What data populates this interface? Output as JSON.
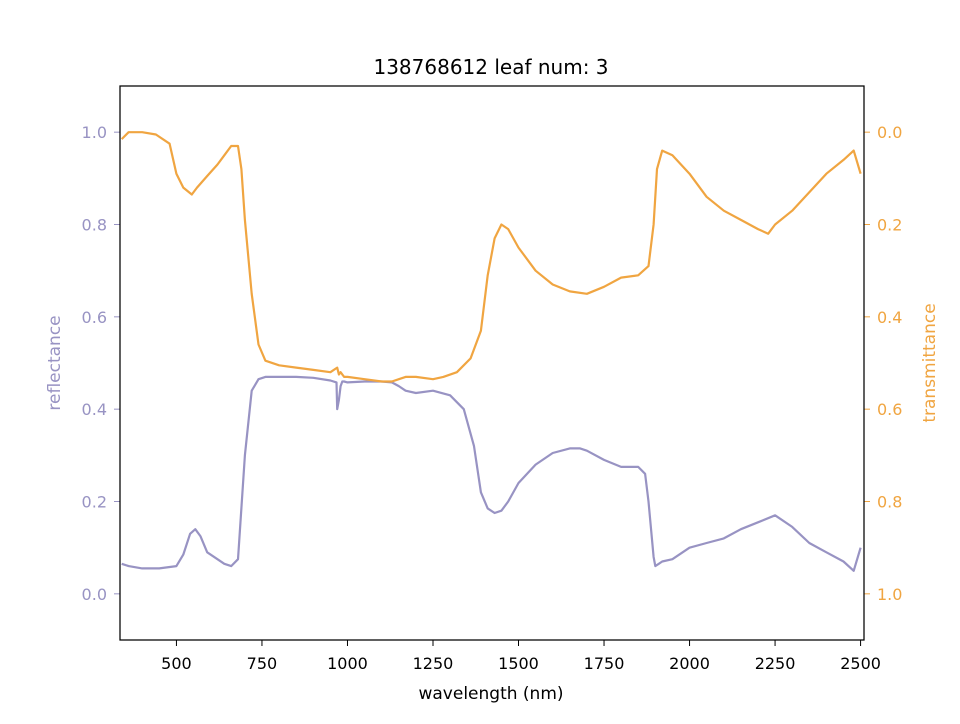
{
  "chart_data": {
    "type": "line",
    "title": "138768612 leaf num: 3",
    "xlabel": "wavelength (nm)",
    "xlim": [
      335,
      2510
    ],
    "xticks": [
      500,
      750,
      1000,
      1250,
      1500,
      1750,
      2000,
      2250,
      2500
    ],
    "y_left": {
      "label": "reflectance",
      "lim": [
        -0.1,
        1.1
      ],
      "ticks": [
        "0.0",
        "0.2",
        "0.4",
        "0.6",
        "0.8",
        "1.0"
      ],
      "color": "#9893c3"
    },
    "y_right": {
      "label": "transmittance",
      "lim": [
        1.1,
        -0.1
      ],
      "inverted": true,
      "ticks": [
        "0.0",
        "0.2",
        "0.4",
        "0.6",
        "0.8",
        "1.0"
      ],
      "color": "#f0a541"
    },
    "series": [
      {
        "axis": "left",
        "color": "#9893c3",
        "x": [
          340,
          360,
          400,
          450,
          500,
          520,
          540,
          555,
          570,
          590,
          610,
          640,
          660,
          680,
          700,
          720,
          740,
          760,
          800,
          850,
          900,
          950,
          968,
          970,
          975,
          980,
          985,
          990,
          1000,
          1050,
          1100,
          1130,
          1150,
          1170,
          1200,
          1250,
          1300,
          1340,
          1370,
          1390,
          1410,
          1430,
          1450,
          1470,
          1500,
          1550,
          1600,
          1650,
          1680,
          1700,
          1750,
          1800,
          1850,
          1870,
          1880,
          1895,
          1900,
          1910,
          1920,
          1950,
          2000,
          2050,
          2100,
          2150,
          2200,
          2250,
          2300,
          2350,
          2400,
          2450,
          2480,
          2500
        ],
        "values": [
          0.065,
          0.06,
          0.055,
          0.055,
          0.06,
          0.085,
          0.13,
          0.14,
          0.125,
          0.09,
          0.08,
          0.065,
          0.06,
          0.075,
          0.3,
          0.44,
          0.465,
          0.47,
          0.47,
          0.47,
          0.468,
          0.462,
          0.458,
          0.4,
          0.42,
          0.45,
          0.46,
          0.46,
          0.458,
          0.46,
          0.46,
          0.458,
          0.45,
          0.44,
          0.435,
          0.44,
          0.43,
          0.4,
          0.32,
          0.22,
          0.185,
          0.175,
          0.18,
          0.2,
          0.24,
          0.28,
          0.305,
          0.315,
          0.315,
          0.31,
          0.29,
          0.275,
          0.275,
          0.26,
          0.2,
          0.08,
          0.06,
          0.065,
          0.07,
          0.075,
          0.1,
          0.11,
          0.12,
          0.14,
          0.155,
          0.17,
          0.145,
          0.11,
          0.09,
          0.07,
          0.05,
          0.1
        ]
      },
      {
        "axis": "right",
        "color": "#f0a541",
        "x": [
          340,
          360,
          400,
          440,
          480,
          500,
          520,
          545,
          560,
          590,
          620,
          640,
          660,
          680,
          690,
          700,
          720,
          740,
          760,
          800,
          850,
          900,
          950,
          970,
          975,
          980,
          990,
          1000,
          1050,
          1100,
          1130,
          1150,
          1170,
          1200,
          1250,
          1280,
          1320,
          1360,
          1390,
          1410,
          1430,
          1450,
          1470,
          1500,
          1550,
          1600,
          1650,
          1700,
          1750,
          1800,
          1850,
          1880,
          1895,
          1905,
          1920,
          1950,
          2000,
          2050,
          2100,
          2150,
          2200,
          2230,
          2250,
          2300,
          2350,
          2400,
          2450,
          2480,
          2500
        ],
        "values": [
          0.015,
          0.0,
          0.0,
          0.005,
          0.025,
          0.09,
          0.12,
          0.135,
          0.12,
          0.095,
          0.07,
          0.05,
          0.03,
          0.03,
          0.08,
          0.19,
          0.35,
          0.46,
          0.495,
          0.505,
          0.51,
          0.515,
          0.52,
          0.51,
          0.525,
          0.52,
          0.53,
          0.53,
          0.535,
          0.54,
          0.54,
          0.535,
          0.53,
          0.53,
          0.535,
          0.53,
          0.52,
          0.49,
          0.43,
          0.31,
          0.23,
          0.2,
          0.21,
          0.25,
          0.3,
          0.33,
          0.345,
          0.35,
          0.335,
          0.315,
          0.31,
          0.29,
          0.2,
          0.08,
          0.04,
          0.05,
          0.09,
          0.14,
          0.17,
          0.19,
          0.21,
          0.22,
          0.2,
          0.17,
          0.13,
          0.09,
          0.06,
          0.04,
          0.09
        ]
      }
    ]
  }
}
